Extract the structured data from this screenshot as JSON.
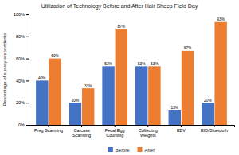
{
  "chart_data": {
    "type": "bar",
    "title": "Utilization of Technology Before and After Hair Sheep Field Day",
    "ylabel": "Percentage of survey respondents",
    "categories": [
      "Preg Scanning",
      "Carcass\nScanning",
      "Fecal Egg\nCounting",
      "Collecting\nWeights",
      "EBV",
      "EID/Bluetooth"
    ],
    "series": [
      {
        "name": "Before",
        "color": "#4472C4",
        "values": [
          40,
          20,
          53,
          53,
          13,
          20
        ],
        "value_labels": [
          "40%",
          "20%",
          "53%",
          "53%",
          "13%",
          "20%"
        ]
      },
      {
        "name": "After",
        "color": "#ED7D31",
        "values": [
          60,
          33,
          87,
          53,
          67,
          93
        ],
        "value_labels": [
          "60%",
          "33%",
          "87%",
          "53%",
          "67%",
          "93%"
        ]
      }
    ],
    "ylim": [
      0,
      100
    ],
    "yticks": [
      {
        "value": 0,
        "label": "0%"
      },
      {
        "value": 20,
        "label": "20%"
      },
      {
        "value": 40,
        "label": "40%"
      },
      {
        "value": 60,
        "label": "60%"
      },
      {
        "value": 80,
        "label": "80%"
      },
      {
        "value": 100,
        "label": "100%"
      }
    ],
    "grid": false,
    "legend": "bottom",
    "data_labels": true
  }
}
